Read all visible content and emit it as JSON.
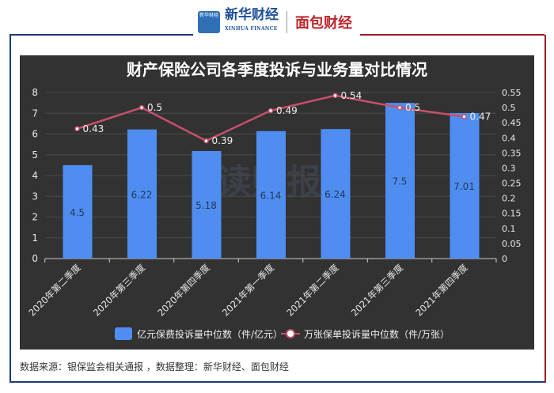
{
  "header": {
    "logo_xinhua_cn": "新华财经",
    "logo_xinhua_en": "XINHUA FINANCE",
    "logo_icon_text": "新华财经",
    "logo_mianbao": "面包财经"
  },
  "watermark": "读财报",
  "source_text": "数据来源：银保监会相关通报 ，数据整理：新华财经、面包财经",
  "chart_data": {
    "type": "bar+line",
    "title": "财产保险公司各季度投诉与业务量对比情况",
    "categories": [
      "2020年第二季度",
      "2020年第三季度",
      "2020年第四季度",
      "2021年第一季度",
      "2021年第二季度",
      "2021年第三季度",
      "2021年第四季度"
    ],
    "series": [
      {
        "name": "亿元保费投诉量中位数（件/亿元）",
        "type": "bar",
        "axis": "left",
        "color": "#4f8ef0",
        "values": [
          4.5,
          6.22,
          5.18,
          6.14,
          6.24,
          7.5,
          7.01
        ]
      },
      {
        "name": "万张保单投诉量中位数（件/万张）",
        "type": "line",
        "axis": "right",
        "color": "#c8506a",
        "values": [
          0.43,
          0.5,
          0.39,
          0.49,
          0.54,
          0.5,
          0.47
        ]
      }
    ],
    "y_left": {
      "min": 0,
      "max": 8,
      "ticks": [
        "0",
        "1",
        "2",
        "3",
        "4",
        "5",
        "6",
        "7",
        "8"
      ]
    },
    "y_right": {
      "min": 0,
      "max": 0.55,
      "ticks": [
        "0",
        "0.05",
        "0.1",
        "0.15",
        "0.2",
        "0.25",
        "0.3",
        "0.35",
        "0.4",
        "0.45",
        "0.5",
        "0.55"
      ]
    },
    "grid": true,
    "legend": "bottom"
  }
}
